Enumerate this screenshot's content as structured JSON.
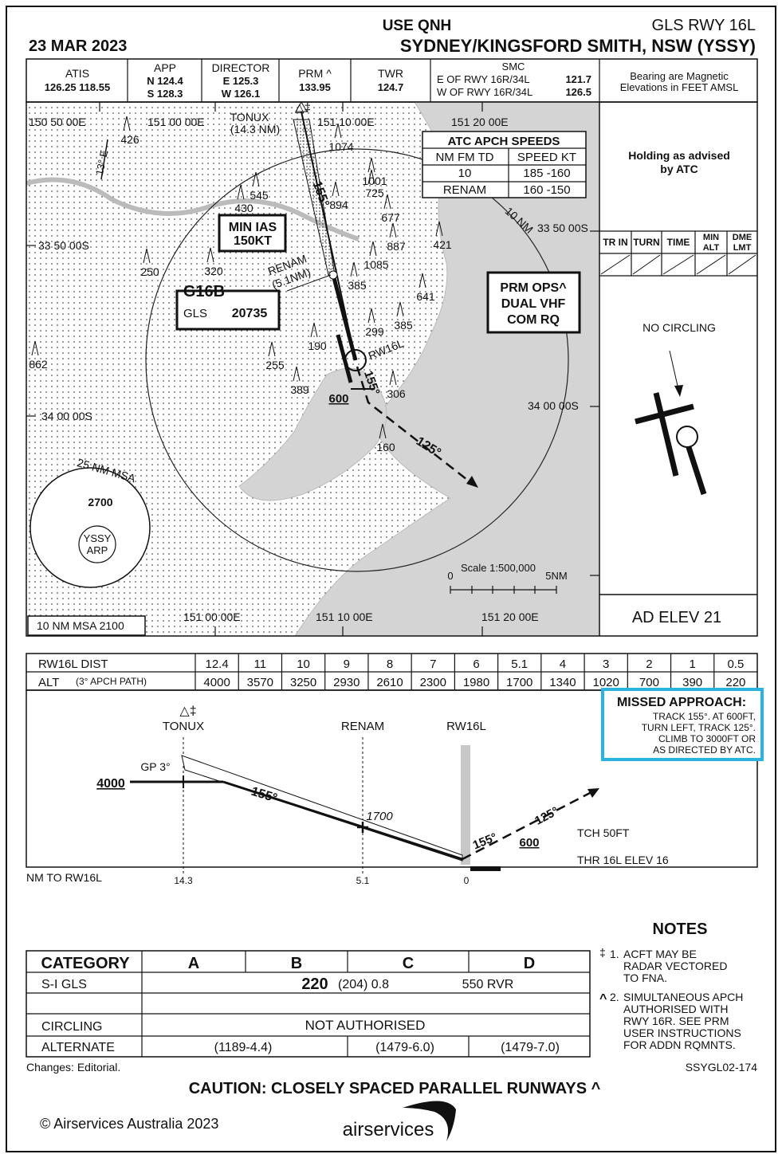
{
  "header": {
    "date": "23 MAR 2023",
    "qnh": "USE QNH",
    "procedure": "GLS RWY 16L",
    "airport": "SYDNEY/KINGSFORD SMITH, NSW (YSSY)"
  },
  "comms": {
    "atis": {
      "label": "ATIS",
      "freqs": "126.25  118.55"
    },
    "app": {
      "label": "APP",
      "lines": [
        "N 124.4",
        "S 128.3"
      ]
    },
    "director": {
      "label": "DIRECTOR",
      "lines": [
        "E  125.3",
        "W 126.1"
      ]
    },
    "prm": {
      "label": "PRM ^",
      "freq": "133.95"
    },
    "twr": {
      "label": "TWR",
      "freq": "124.7"
    },
    "smc": {
      "label": "SMC",
      "lines": [
        "E OF RWY 16R/34L",
        "W OF RWY 16R/34L"
      ],
      "freqs": [
        "121.7",
        "126.5"
      ]
    },
    "remark": [
      "Bearing are Magnetic",
      "Elevations in FEET AMSL"
    ]
  },
  "plan": {
    "longitudes_top": [
      "150 50 00E",
      "151 00 00E",
      "151 10 00E",
      "151 20 00E"
    ],
    "longitudes_bottom": [
      "151 00 00E",
      "151 10 00E",
      "151 20 00E"
    ],
    "latitudes_left": [
      "33 50 00S",
      "34 00 00S"
    ],
    "latitudes_right": [
      "33 50 00S",
      "34 00 00S"
    ],
    "variation": "13° E",
    "tonux": {
      "symbol": "△‡",
      "name": "TONUX",
      "dist": "(14.3 NM)"
    },
    "renam": {
      "name": "RENAM",
      "dist": "(5.1NM)"
    },
    "runway_label": "RW16L",
    "tracks": [
      "155°",
      "155°",
      "125°"
    ],
    "turn_alt": "600",
    "range_ring": "10 NM",
    "obstacles": [
      "426",
      "1074",
      "545",
      "430",
      "894",
      "1001",
      "725",
      "677",
      "887",
      "421",
      "1085",
      "385",
      "641",
      "385",
      "299",
      "320",
      "250",
      "190",
      "255",
      "389",
      "306",
      "160",
      "862"
    ],
    "min_ias": [
      "MIN IAS",
      "150KT"
    ],
    "channel": {
      "id": "G16B",
      "system": "GLS",
      "number": "20735"
    },
    "prm_ops": [
      "PRM OPS^",
      "DUAL VHF",
      "COM RQ"
    ],
    "speeds": {
      "title": "ATC APCH SPEEDS",
      "header": [
        "NM FM TD",
        "SPEED KT"
      ],
      "rows": [
        [
          "10",
          "185 -160"
        ],
        [
          "RENAM",
          "160 -150"
        ]
      ]
    },
    "msa": {
      "title": "25 NM MSA",
      "altitude": "2700",
      "ref": [
        "YSSY",
        "ARP"
      ],
      "ten_nm": "10 NM MSA 2100"
    },
    "scale": {
      "label": "Scale 1:500,000",
      "start": "0",
      "end": "5NM"
    }
  },
  "side": {
    "holding": [
      "Holding as advised",
      "by ATC"
    ],
    "holding_table": [
      [
        "TR IN"
      ],
      [
        "TURN"
      ],
      [
        "TIME"
      ],
      [
        "MIN",
        "ALT"
      ],
      [
        "DME",
        "LMT"
      ]
    ],
    "no_circling": "NO CIRCLING",
    "ad_elev": "AD ELEV 21"
  },
  "profile_table": {
    "dist_label": "RW16L DIST",
    "dist": [
      "12.4",
      "11",
      "10",
      "9",
      "8",
      "7",
      "6",
      "5.1",
      "4",
      "3",
      "2",
      "1",
      "0.5"
    ],
    "alt_label": "ALT",
    "alt_note": "(3° APCH PATH)",
    "alt": [
      "4000",
      "3570",
      "3250",
      "2930",
      "2610",
      "2300",
      "1980",
      "1700",
      "1340",
      "1020",
      "700",
      "390",
      "220"
    ]
  },
  "profile": {
    "tonux_symbol": "△‡",
    "tonux": "TONUX",
    "renam": "RENAM",
    "rw16l": "RW16L",
    "gp": "GP 3°",
    "fap_alt": "4000",
    "track": "155°",
    "renam_alt": "1700",
    "ma_track1": "155°",
    "ma_track2": "125°",
    "turn_alt": "600",
    "tch": "TCH 50FT",
    "thr": "THR 16L ELEV 16",
    "axis_label": "NM TO RW16L",
    "axis": [
      "14.3",
      "5.1",
      "0"
    ]
  },
  "missed_approach": {
    "title": "MISSED APPROACH:",
    "lines": [
      "TRACK 155°. AT 600FT,",
      "TURN LEFT, TRACK 125°.",
      "CLIMB TO 3000FT OR",
      "AS DIRECTED BY ATC."
    ]
  },
  "notes": {
    "title": "NOTES",
    "items": [
      {
        "mark": "‡",
        "number": "1.",
        "lines": [
          "ACFT MAY BE",
          "RADAR VECTORED",
          "TO FNA."
        ]
      },
      {
        "mark": "^",
        "number": "2.",
        "lines": [
          "SIMULTANEOUS APCH",
          "AUTHORISED WITH",
          "RWY 16R. SEE PRM",
          "USER INSTRUCTIONS",
          "FOR ADDN RQMNTS."
        ]
      }
    ]
  },
  "minima": {
    "header": [
      "CATEGORY",
      "A",
      "B",
      "C",
      "D"
    ],
    "gls": {
      "label": "S-I  GLS",
      "da": "220",
      "values": "(204) 0.8",
      "vis": "550 RVR"
    },
    "circling": {
      "label": "CIRCLING",
      "value": "NOT AUTHORISED"
    },
    "alternate": {
      "label": "ALTERNATE",
      "values": [
        "(1189-4.4)",
        "(1479-6.0)",
        "(1479-7.0)"
      ]
    }
  },
  "footer": {
    "changes": "Changes: Editorial.",
    "code": "SSYGL02-174",
    "caution": "CAUTION: CLOSELY SPACED PARALLEL RUNWAYS ^",
    "copyright": "© Airservices Australia 2023",
    "brand": "airservices"
  }
}
